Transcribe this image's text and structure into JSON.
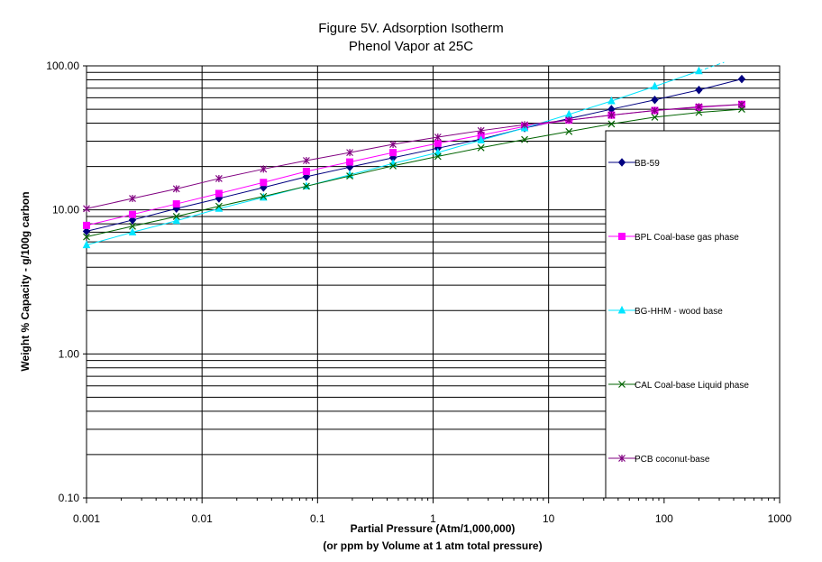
{
  "chart_data": {
    "type": "line",
    "title": "Figure 5V. Adsorption Isotherm",
    "subtitle": "Phenol Vapor at 25C",
    "xlabel": "Partial Pressure (Atm/1,000,000)",
    "xlabel2": "(or ppm by Volume at 1 atm total pressure)",
    "ylabel": "Weight % Capacity - g/100g carbon",
    "x_scale": "log",
    "y_scale": "log",
    "xlim": [
      0.001,
      1000
    ],
    "ylim": [
      0.1,
      100
    ],
    "x_ticks": [
      "0.001",
      "0.01",
      "0.1",
      "1",
      "10",
      "100",
      "1000"
    ],
    "y_ticks": [
      "0.10",
      "1.00",
      "10.00",
      "100.00"
    ],
    "grid": true,
    "legend_position": "right",
    "series": [
      {
        "name": "BB-59",
        "color": "#000080",
        "marker": "diamond",
        "x": [
          0.001,
          0.0025,
          0.006,
          0.014,
          0.034,
          0.08,
          0.19,
          0.45,
          1.1,
          2.6,
          6.2,
          15,
          35,
          83,
          200,
          470
        ],
        "y": [
          7.1,
          8.5,
          10.2,
          12.0,
          14.3,
          17.0,
          19.8,
          23.0,
          26.8,
          31.0,
          37.0,
          43.0,
          50.0,
          58.0,
          68.0,
          81.0
        ]
      },
      {
        "name": "BPL Coal-base gas phase",
        "color": "#FF00FF",
        "marker": "square",
        "x": [
          0.001,
          0.0025,
          0.006,
          0.014,
          0.034,
          0.08,
          0.19,
          0.45,
          1.1,
          2.6,
          6.2,
          15,
          35,
          83,
          200,
          470
        ],
        "y": [
          7.8,
          9.3,
          11.0,
          13.0,
          15.5,
          18.5,
          21.5,
          25.0,
          29.0,
          33.0,
          38.0,
          42.0,
          45.5,
          49.0,
          51.5,
          54.0
        ]
      },
      {
        "name": "BG-HHM - wood base",
        "color": "#00E5FF",
        "marker": "triangle",
        "x": [
          0.001,
          0.0025,
          0.006,
          0.014,
          0.034,
          0.08,
          0.19,
          0.45,
          1.1,
          2.6,
          6.2,
          15,
          35,
          83,
          200
        ],
        "y": [
          5.7,
          7.0,
          8.4,
          10.2,
          12.2,
          14.6,
          17.5,
          21.0,
          25.0,
          30.5,
          37.0,
          46.0,
          57.0,
          72.0,
          92.0
        ]
      },
      {
        "name": "CAL Coal-base Liquid phase",
        "color": "#006400",
        "marker": "x",
        "x": [
          0.001,
          0.0025,
          0.006,
          0.014,
          0.034,
          0.08,
          0.19,
          0.45,
          1.1,
          2.6,
          6.2,
          15,
          35,
          83,
          200,
          470
        ],
        "y": [
          6.5,
          7.7,
          9.0,
          10.6,
          12.4,
          14.6,
          17.2,
          20.2,
          23.5,
          27.0,
          30.8,
          35.0,
          39.5,
          44.0,
          47.5,
          50.0
        ]
      },
      {
        "name": "PCB coconut-base",
        "color": "#800080",
        "marker": "star",
        "x": [
          0.001,
          0.0025,
          0.006,
          0.014,
          0.034,
          0.08,
          0.19,
          0.45,
          1.1,
          2.6,
          6.2,
          15,
          35,
          83,
          200,
          470
        ],
        "y": [
          10.2,
          12.0,
          14.0,
          16.5,
          19.2,
          22.0,
          25.0,
          28.5,
          32.0,
          35.5,
          39.0,
          42.0,
          45.5,
          49.0,
          52.0,
          54.0
        ]
      }
    ]
  }
}
